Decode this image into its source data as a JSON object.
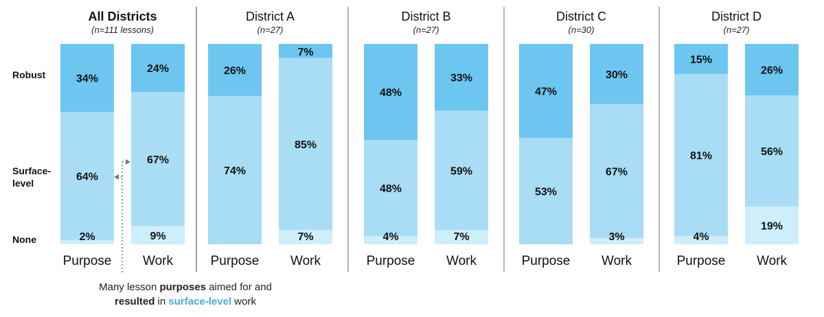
{
  "chart_data": {
    "type": "bar",
    "stacked": true,
    "normalized": true,
    "levels": [
      "Robust",
      "Surface-level",
      "None"
    ],
    "level_colors": {
      "Robust": "#6dc6f0",
      "Surface-level": "#a9ddf5",
      "None": "#cfeefb"
    },
    "level_label_lines": [
      [
        "Robust"
      ],
      [
        "Surface-",
        "level"
      ],
      [
        "None"
      ]
    ],
    "groups": [
      {
        "title": "All Districts",
        "subtitle": "(n=111 lessons)",
        "bars": [
          {
            "category": "Purpose",
            "values": {
              "Robust": 34,
              "Surface-level": 64,
              "None": 2
            },
            "labels": [
              "34%",
              "64%",
              "2%"
            ]
          },
          {
            "category": "Work",
            "values": {
              "Robust": 24,
              "Surface-level": 67,
              "None": 9
            },
            "labels": [
              "24%",
              "67%",
              "9%"
            ]
          }
        ]
      },
      {
        "title": "District A",
        "subtitle": "(n=27)",
        "bars": [
          {
            "category": "Purpose",
            "values": {
              "Robust": 26,
              "Surface-level": 74,
              "None": 0
            },
            "labels": [
              "26%",
              "74%",
              ""
            ]
          },
          {
            "category": "Work",
            "values": {
              "Robust": 7,
              "Surface-level": 85,
              "None": 7
            },
            "labels": [
              "7%",
              "85%",
              "7%"
            ]
          }
        ]
      },
      {
        "title": "District B",
        "subtitle": "(n=27)",
        "bars": [
          {
            "category": "Purpose",
            "values": {
              "Robust": 48,
              "Surface-level": 48,
              "None": 4
            },
            "labels": [
              "48%",
              "48%",
              "4%"
            ]
          },
          {
            "category": "Work",
            "values": {
              "Robust": 33,
              "Surface-level": 59,
              "None": 7
            },
            "labels": [
              "33%",
              "59%",
              "7%"
            ]
          }
        ]
      },
      {
        "title": "District C",
        "subtitle": "(n=30)",
        "bars": [
          {
            "category": "Purpose",
            "values": {
              "Robust": 47,
              "Surface-level": 53,
              "None": 0
            },
            "labels": [
              "47%",
              "53%",
              ""
            ]
          },
          {
            "category": "Work",
            "values": {
              "Robust": 30,
              "Surface-level": 67,
              "None": 3
            },
            "labels": [
              "30%",
              "67%",
              "3%"
            ]
          }
        ]
      },
      {
        "title": "District D",
        "subtitle": "(n=27)",
        "bars": [
          {
            "category": "Purpose",
            "values": {
              "Robust": 15,
              "Surface-level": 81,
              "None": 4
            },
            "labels": [
              "15%",
              "81%",
              "4%"
            ]
          },
          {
            "category": "Work",
            "values": {
              "Robust": 26,
              "Surface-level": 56,
              "None": 19
            },
            "labels": [
              "26%",
              "56%",
              "19%"
            ]
          }
        ]
      }
    ],
    "annotation": {
      "before_purposes": "Many lesson ",
      "purposes": "purposes",
      "after_purposes": " aimed for and",
      "resulted": "resulted",
      "in": " in ",
      "surface_level": "surface-level",
      "work": " work",
      "highlight_color": "#4aaee0"
    }
  }
}
